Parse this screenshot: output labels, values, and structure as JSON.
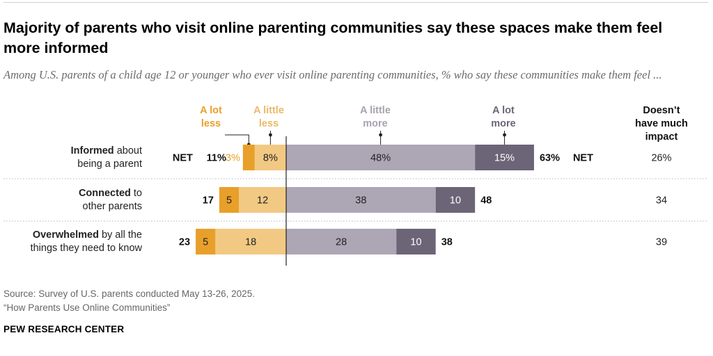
{
  "header": {
    "title": "Majority of parents who visit online parenting communities say these spaces make them feel more informed",
    "subtitle": "Among U.S. parents of a child age 12 or younger who ever visit online parenting communities, % who say these communities make them feel ..."
  },
  "footer": {
    "source": "Source: Survey of U.S. parents conducted May 13-26, 2025.",
    "report": "“How Parents Use Online Communities”",
    "brand": "PEW RESEARCH CENTER"
  },
  "chart_data": {
    "type": "bar",
    "orientation": "horizontal",
    "stacked": "diverging",
    "legend_placement": "top",
    "grid": false,
    "column_headers": {
      "a_lot_less": [
        "A lot",
        "less"
      ],
      "a_little_less": [
        "A little",
        "less"
      ],
      "a_little_more": [
        "A little",
        "more"
      ],
      "a_lot_more": [
        "A lot",
        "more"
      ],
      "no_impact": [
        "Doesn’t",
        "have much",
        "impact"
      ]
    },
    "colors": {
      "a_lot_less": "#E8A02A",
      "a_little_less": "#F2C983",
      "a_little_more": "#ACA6B5",
      "a_lot_more": "#6C6477",
      "a_lot_less_header": "#E8A02A",
      "a_little_less_header": "#EAB96A",
      "more_header": "#A8A2B1",
      "a_lot_more_header": "#6C6477"
    },
    "rows": [
      {
        "label_bold": "Informed",
        "label_rest": " about",
        "label_line2": "being a parent",
        "net_word": "NET",
        "net_less": 11,
        "net_less_label": "11%",
        "a_lot_less": 3,
        "a_lot_less_label": "3%",
        "a_little_less": 8,
        "a_little_less_label": "8%",
        "a_little_more": 48,
        "a_little_more_label": "48%",
        "a_lot_more": 15,
        "a_lot_more_label": "15%",
        "net_more": 63,
        "net_more_label": "63%",
        "no_impact": 26,
        "no_impact_label": "26%"
      },
      {
        "label_bold": "Connected",
        "label_rest": " to",
        "label_line2": "other parents",
        "net_word": "",
        "net_less": 17,
        "net_less_label": "17",
        "a_lot_less": 5,
        "a_lot_less_label": "5",
        "a_little_less": 12,
        "a_little_less_label": "12",
        "a_little_more": 38,
        "a_little_more_label": "38",
        "a_lot_more": 10,
        "a_lot_more_label": "10",
        "net_more": 48,
        "net_more_label": "48",
        "no_impact": 34,
        "no_impact_label": "34"
      },
      {
        "label_bold": "Overwhelmed",
        "label_rest": " by all the",
        "label_line2": "things they need to know",
        "net_word": "",
        "net_less": 23,
        "net_less_label": "23",
        "a_lot_less": 5,
        "a_lot_less_label": "5",
        "a_little_less": 18,
        "a_little_less_label": "18",
        "a_little_more": 28,
        "a_little_more_label": "28",
        "a_lot_more": 10,
        "a_lot_more_label": "10",
        "net_more": 38,
        "net_more_label": "38",
        "no_impact": 39,
        "no_impact_label": "39"
      }
    ]
  }
}
